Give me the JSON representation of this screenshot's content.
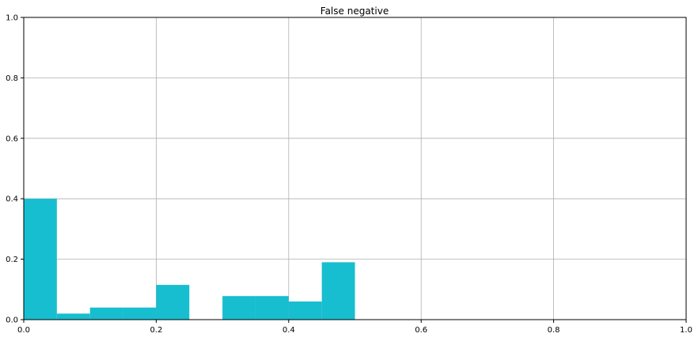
{
  "chart_data": {
    "type": "bar",
    "title": "False negative",
    "xlabel": "",
    "ylabel": "",
    "xlim": [
      0,
      1
    ],
    "ylim": [
      0,
      1
    ],
    "grid": true,
    "bar_color": "#17becf",
    "x_ticks": [
      0,
      0.2,
      0.4,
      0.6,
      0.8,
      1
    ],
    "x_tick_labels": [
      "0.0",
      "0.2",
      "0.4",
      "0.6",
      "0.8",
      "1.0"
    ],
    "y_ticks": [
      0,
      0.2,
      0.4,
      0.6,
      0.8,
      1
    ],
    "y_tick_labels": [
      "0.0",
      "0.2",
      "0.4",
      "0.6",
      "0.8",
      "1.0"
    ],
    "bins": [
      {
        "x0": 0.0,
        "x1": 0.05,
        "value": 0.4
      },
      {
        "x0": 0.05,
        "x1": 0.1,
        "value": 0.02
      },
      {
        "x0": 0.1,
        "x1": 0.15,
        "value": 0.04
      },
      {
        "x0": 0.15,
        "x1": 0.2,
        "value": 0.04
      },
      {
        "x0": 0.2,
        "x1": 0.25,
        "value": 0.115
      },
      {
        "x0": 0.25,
        "x1": 0.3,
        "value": 0.0
      },
      {
        "x0": 0.3,
        "x1": 0.35,
        "value": 0.078
      },
      {
        "x0": 0.35,
        "x1": 0.4,
        "value": 0.078
      },
      {
        "x0": 0.4,
        "x1": 0.45,
        "value": 0.06
      },
      {
        "x0": 0.45,
        "x1": 0.5,
        "value": 0.19
      }
    ]
  }
}
